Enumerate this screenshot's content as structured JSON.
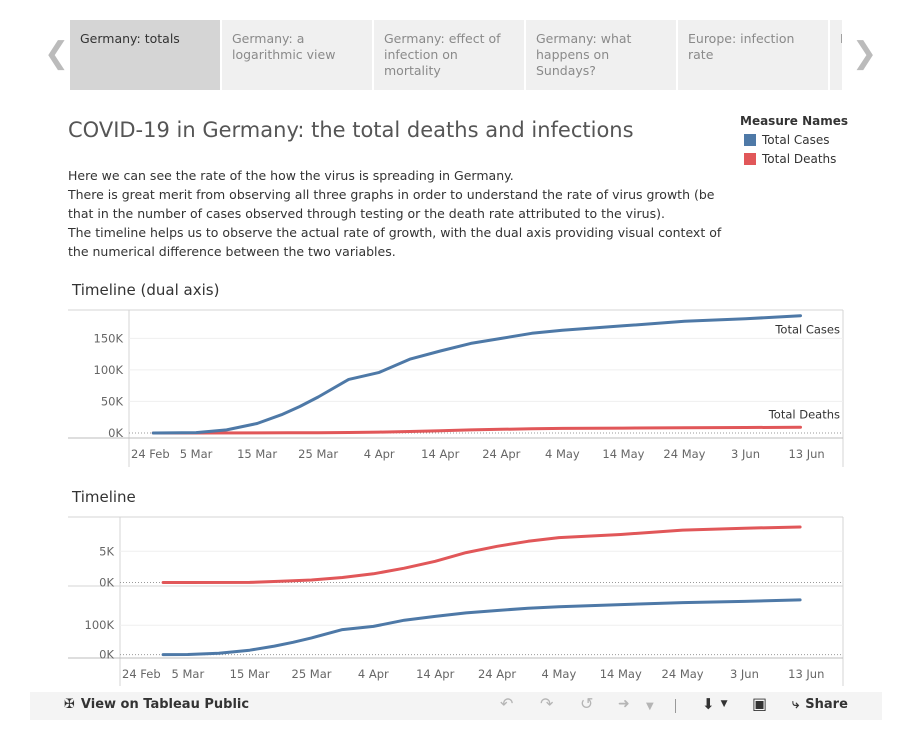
{
  "tabs": [
    {
      "label": "Germany: totals",
      "active": true
    },
    {
      "label": "Germany: a logarithmic view",
      "active": false
    },
    {
      "label": "Germany: effect of infection on mortality",
      "active": false
    },
    {
      "label": "Germany: what happens on Sundays?",
      "active": false
    },
    {
      "label": "Europe: infection rate",
      "active": false
    },
    {
      "label": "I",
      "active": false
    }
  ],
  "title": "COVID-19 in Germany: the total deaths and infections",
  "description": [
    "Here we can see the rate of the how the virus is spreading in Germany.",
    "There is great merit from observing all three graphs in order to understand the rate of virus growth (be that in the number of cases observed through testing or the death rate attributed to the virus).",
    "The timeline helps us to observe the actual rate of growth, with the dual axis providing visual context of the numerical difference between the two variables."
  ],
  "legend": {
    "title": "Measure Names",
    "items": [
      {
        "label": "Total Cases",
        "color": "#4e79a7"
      },
      {
        "label": "Total Deaths",
        "color": "#e15759"
      }
    ]
  },
  "colors": {
    "cases": "#4e79a7",
    "deaths": "#e15759"
  },
  "chart_data": [
    {
      "type": "line",
      "title": "Timeline (dual axis)",
      "x_tick_labels": [
        "24 Feb",
        "5 Mar",
        "15 Mar",
        "25 Mar",
        "4 Apr",
        "14 Apr",
        "24 Apr",
        "4 May",
        "14 May",
        "24 May",
        "3 Jun",
        "13 Jun"
      ],
      "x_days": [
        0,
        10,
        20,
        30,
        40,
        50,
        60,
        70,
        80,
        90,
        100,
        110
      ],
      "x_range_days": [
        0,
        114
      ],
      "y_ticks": [
        0,
        50000,
        100000,
        150000
      ],
      "y_tick_labels": [
        "0K",
        "50K",
        "100K",
        "150K"
      ],
      "ylim": [
        -8000,
        195000
      ],
      "dual_axis": true,
      "series": [
        {
          "name": "Total Cases",
          "label": "Total Cases",
          "x": [
            3,
            10,
            15,
            20,
            24,
            27,
            30,
            35,
            40,
            45,
            50,
            55,
            60,
            65,
            70,
            80,
            90,
            100,
            109
          ],
          "values": [
            0,
            600,
            4800,
            15000,
            29000,
            42000,
            57000,
            85000,
            96000,
            117000,
            130000,
            142000,
            150000,
            158000,
            163000,
            170000,
            177000,
            181000,
            186000
          ]
        },
        {
          "name": "Total Deaths",
          "label": "Total Deaths",
          "x": [
            3,
            10,
            20,
            25,
            30,
            35,
            40,
            45,
            50,
            55,
            60,
            65,
            70,
            80,
            90,
            100,
            109
          ],
          "values": [
            0,
            0,
            20,
            200,
            400,
            800,
            1400,
            2300,
            3400,
            4800,
            5800,
            6600,
            7200,
            7700,
            8400,
            8700,
            8900
          ]
        }
      ]
    },
    {
      "type": "line",
      "title": "Timeline",
      "x_tick_labels": [
        "24 Feb",
        "5 Mar",
        "15 Mar",
        "25 Mar",
        "4 Apr",
        "14 Apr",
        "24 Apr",
        "4 May",
        "14 May",
        "24 May",
        "3 Jun",
        "13 Jun"
      ],
      "x_days": [
        0,
        10,
        20,
        30,
        40,
        50,
        60,
        70,
        80,
        90,
        100,
        110
      ],
      "x_range_days": [
        0,
        114
      ],
      "panels": [
        {
          "measure": "Total Deaths",
          "y_ticks": [
            0,
            5000
          ],
          "y_tick_labels": [
            "0K",
            "5K"
          ],
          "ylim": [
            -400,
            10500
          ],
          "x": [
            6,
            10,
            20,
            25,
            30,
            35,
            40,
            45,
            50,
            55,
            60,
            65,
            70,
            80,
            90,
            100,
            109
          ],
          "values": [
            0,
            0,
            20,
            200,
            400,
            800,
            1400,
            2300,
            3400,
            4800,
            5800,
            6600,
            7200,
            7700,
            8400,
            8700,
            8900
          ]
        },
        {
          "measure": "Total Cases",
          "y_ticks": [
            0,
            100000
          ],
          "y_tick_labels": [
            "0K",
            "100K"
          ],
          "ylim": [
            -8000,
            230000
          ],
          "x": [
            6,
            10,
            15,
            20,
            24,
            27,
            30,
            35,
            40,
            45,
            50,
            55,
            60,
            65,
            70,
            80,
            90,
            100,
            109
          ],
          "values": [
            0,
            600,
            4800,
            15000,
            29000,
            42000,
            57000,
            85000,
            96000,
            117000,
            130000,
            142000,
            150000,
            158000,
            163000,
            170000,
            177000,
            181000,
            186000
          ]
        }
      ]
    }
  ],
  "toolbar": {
    "view_label": "View on Tableau Public",
    "share_label": "Share"
  }
}
